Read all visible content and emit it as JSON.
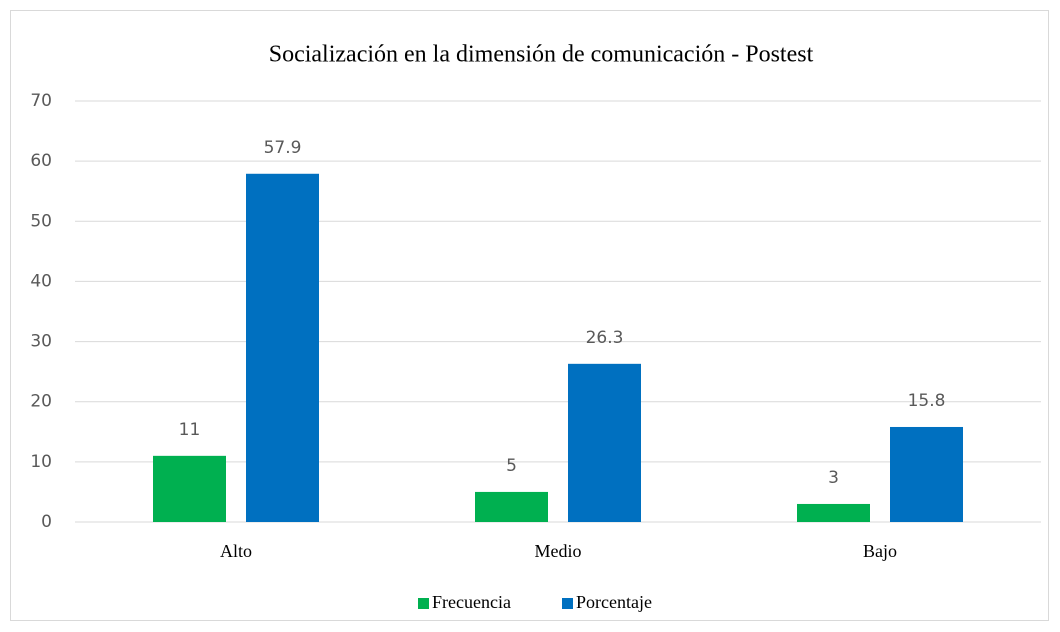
{
  "chart_data": {
    "type": "bar",
    "title": "Socialización en la dimensión de comunicación - Postest",
    "categories": [
      "Alto",
      "Medio",
      "Bajo"
    ],
    "series": [
      {
        "name": "Frecuencia",
        "color": "#00b050",
        "values": [
          11,
          5,
          3
        ]
      },
      {
        "name": "Porcentaje",
        "color": "#0070c0",
        "values": [
          57.9,
          26.3,
          15.8
        ]
      }
    ],
    "ylim": [
      0,
      70
    ],
    "yticks": [
      0,
      10,
      20,
      30,
      40,
      50,
      60,
      70
    ],
    "grid": true,
    "legend": "bottom"
  }
}
